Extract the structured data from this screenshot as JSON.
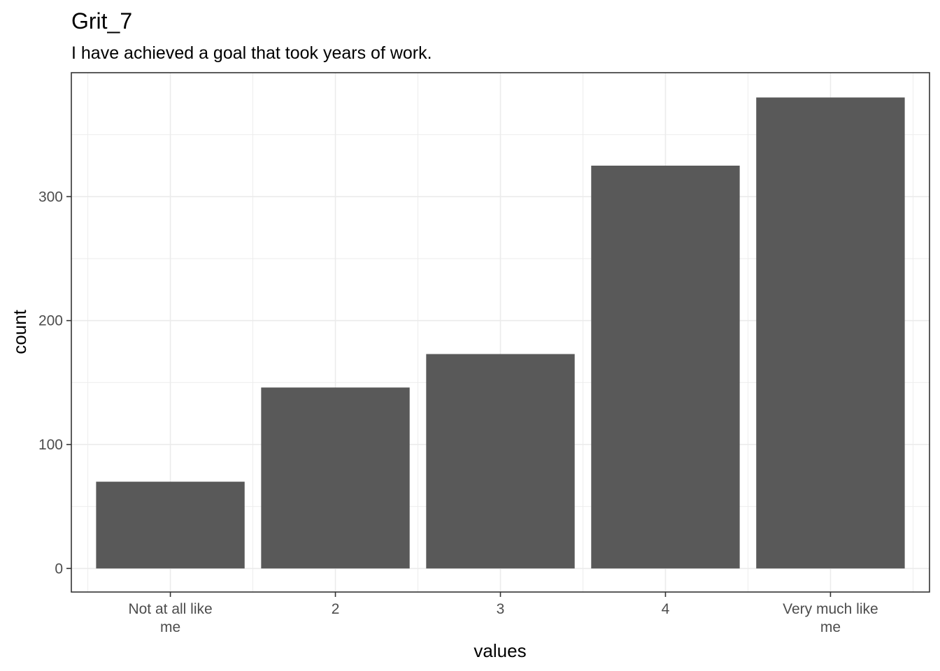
{
  "chart_data": {
    "type": "bar",
    "title": "Grit_7",
    "subtitle": "I have achieved a goal that took years of work.",
    "xlabel": "values",
    "ylabel": "count",
    "categories": [
      [
        "Not at all like",
        "me"
      ],
      [
        "2"
      ],
      [
        "3"
      ],
      [
        "4"
      ],
      [
        "Very much like",
        "me"
      ]
    ],
    "values": [
      70,
      146,
      173,
      325,
      380
    ],
    "ylim": [
      -19,
      400
    ],
    "y_ticks": [
      0,
      100,
      200,
      300
    ],
    "y_tick_labels": [
      "0",
      "100",
      "200",
      "300"
    ],
    "grid": true,
    "bar_color": "#595959",
    "grid_color": "#ebebeb",
    "panel_border_color": "#333333"
  }
}
